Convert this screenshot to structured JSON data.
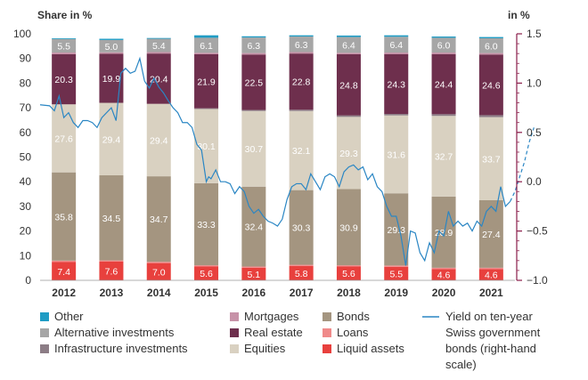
{
  "chart_data": {
    "type": "bar",
    "left_axis_title": "Share in %",
    "right_axis_title": "in %",
    "categories": [
      "2012",
      "2013",
      "2014",
      "2015",
      "2016",
      "2017",
      "2018",
      "2019",
      "2020",
      "2021"
    ],
    "ylim": [
      0,
      100
    ],
    "y_ticks": [
      "0",
      "10",
      "20",
      "30",
      "40",
      "50",
      "60",
      "70",
      "80",
      "90",
      "100"
    ],
    "y2lim": [
      -1.0,
      1.5
    ],
    "y2_ticks": [
      "1.5",
      "1.0",
      "0.5",
      "0.0",
      "−0.5",
      "−1.0"
    ],
    "series": [
      {
        "name": "Liquid assets",
        "color": "#e8403d",
        "values": [
          7.4,
          7.6,
          7.0,
          5.6,
          5.1,
          5.8,
          5.6,
          5.5,
          4.6,
          4.6
        ]
      },
      {
        "name": "Loans",
        "color": "#f08a8a",
        "values": [
          0.6,
          0.5,
          0.5,
          0.5,
          0.5,
          0.5,
          0.5,
          0.5,
          0.5,
          0.5
        ]
      },
      {
        "name": "Bonds",
        "color": "#a49580",
        "values": [
          35.8,
          34.5,
          34.7,
          33.3,
          32.4,
          30.3,
          30.9,
          29.3,
          28.9,
          27.4
        ]
      },
      {
        "name": "Equities",
        "color": "#d9d1c1",
        "values": [
          27.6,
          29.4,
          29.4,
          30.1,
          30.7,
          32.1,
          29.3,
          31.6,
          32.7,
          33.7
        ]
      },
      {
        "name": "Infrastructure investments",
        "color": "#8c7d86",
        "values": [
          0,
          0,
          0,
          0.3,
          0.4,
          0.5,
          0.6,
          0.6,
          0.7,
          0.8
        ]
      },
      {
        "name": "Real estate",
        "color": "#6e2f4d",
        "values": [
          20.3,
          19.9,
          20.4,
          21.9,
          22.5,
          22.8,
          24.8,
          24.3,
          24.4,
          24.6
        ]
      },
      {
        "name": "Mortgages",
        "color": "#c792a8",
        "values": [
          0.7,
          0.6,
          0.6,
          0.6,
          0.6,
          0.6,
          0.6,
          0.6,
          0.6,
          0.6
        ]
      },
      {
        "name": "Alternative investments",
        "color": "#a6a6a6",
        "values": [
          5.5,
          5.0,
          5.4,
          6.1,
          6.3,
          6.3,
          6.4,
          6.4,
          6.0,
          6.0
        ]
      },
      {
        "name": "Other",
        "color": "#1f9cc4",
        "values": [
          0.3,
          0.5,
          0.3,
          1.0,
          0.5,
          0.5,
          0.6,
          0.6,
          0.5,
          0.5
        ]
      }
    ],
    "labeled_series": [
      "Liquid assets",
      "Bonds",
      "Equities",
      "Real estate",
      "Alternative investments"
    ],
    "line_series": {
      "name": "Yield on ten-year Swiss government bonds (right-hand scale)",
      "color": "#2a86c4",
      "x": [
        2011.5,
        2011.7,
        2011.8,
        2011.9,
        2012.0,
        2012.1,
        2012.2,
        2012.3,
        2012.4,
        2012.5,
        2012.6,
        2012.7,
        2012.8,
        2012.9,
        2013.0,
        2013.1,
        2013.2,
        2013.3,
        2013.4,
        2013.5,
        2013.6,
        2013.7,
        2013.8,
        2013.9,
        2014.0,
        2014.1,
        2014.2,
        2014.3,
        2014.4,
        2014.5,
        2014.6,
        2014.7,
        2014.8,
        2014.9,
        2015.0,
        2015.05,
        2015.1,
        2015.2,
        2015.3,
        2015.4,
        2015.5,
        2015.6,
        2015.7,
        2015.8,
        2015.9,
        2016.0,
        2016.1,
        2016.2,
        2016.3,
        2016.4,
        2016.5,
        2016.6,
        2016.7,
        2016.8,
        2016.9,
        2017.0,
        2017.1,
        2017.2,
        2017.3,
        2017.4,
        2017.5,
        2017.6,
        2017.7,
        2017.8,
        2017.9,
        2018.0,
        2018.1,
        2018.2,
        2018.3,
        2018.4,
        2018.5,
        2018.6,
        2018.7,
        2018.8,
        2018.9,
        2019.0,
        2019.1,
        2019.2,
        2019.3,
        2019.4,
        2019.5,
        2019.6,
        2019.7,
        2019.8,
        2019.9,
        2020.0,
        2020.1,
        2020.2,
        2020.3,
        2020.4,
        2020.5,
        2020.6,
        2020.7,
        2020.8,
        2020.9,
        2021.0,
        2021.1,
        2021.2,
        2021.3,
        2021.4,
        2021.5,
        2021.6,
        2021.7,
        2021.8,
        2021.9
      ],
      "values": [
        0.78,
        0.77,
        0.72,
        0.87,
        0.65,
        0.7,
        0.6,
        0.55,
        0.62,
        0.62,
        0.6,
        0.55,
        0.65,
        0.7,
        0.75,
        0.62,
        1.1,
        1.15,
        1.1,
        1.12,
        1.25,
        1.02,
        0.95,
        1.05,
        0.96,
        0.9,
        0.82,
        0.75,
        0.7,
        0.6,
        0.6,
        0.55,
        0.38,
        0.32,
        0.0,
        0.05,
        0.03,
        0.12,
        0.0,
        0.0,
        -0.02,
        -0.12,
        -0.05,
        -0.1,
        -0.25,
        -0.32,
        -0.28,
        -0.35,
        -0.4,
        -0.42,
        -0.45,
        -0.38,
        -0.18,
        -0.05,
        -0.02,
        -0.02,
        -0.08,
        0.08,
        0.0,
        -0.08,
        0.05,
        0.08,
        0.05,
        -0.05,
        0.1,
        0.15,
        0.17,
        0.12,
        0.15,
        0.02,
        0.08,
        -0.05,
        -0.1,
        -0.25,
        -0.35,
        -0.35,
        -0.55,
        -0.85,
        -0.5,
        -0.52,
        -0.72,
        -0.8,
        -0.62,
        -0.72,
        -0.5,
        -0.55,
        -0.3,
        -0.45,
        -0.4,
        -0.45,
        -0.42,
        -0.5,
        -0.4,
        -0.45,
        -0.3,
        -0.25,
        -0.3,
        -0.05,
        -0.25,
        -0.2,
        -0.1,
        0.05,
        0.2,
        0.4,
        0.55
      ]
    }
  },
  "legend": {
    "col1": [
      "Other",
      "Alternative investments",
      "Infrastructure investments"
    ],
    "col2": [
      "Mortgages",
      "Real estate",
      "Equities"
    ],
    "col3": [
      "Bonds",
      "Loans",
      "Liquid assets"
    ],
    "line_label": [
      "Yield on ten-year",
      "Swiss government",
      "bonds (right-hand",
      "scale)"
    ]
  }
}
